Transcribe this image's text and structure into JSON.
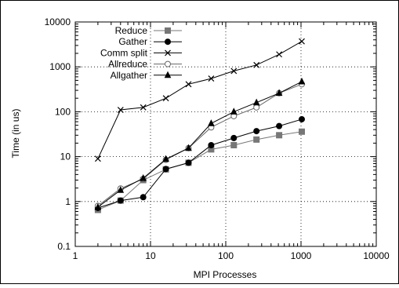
{
  "chart_data": {
    "type": "line",
    "xlabel": "MPI Processes",
    "ylabel": "Time (in us)",
    "xscale": "log",
    "yscale": "log",
    "xlim": [
      1,
      10000
    ],
    "ylim": [
      0.1,
      10000
    ],
    "x_ticks": [
      1,
      10,
      100,
      1000,
      10000
    ],
    "y_ticks": [
      0.1,
      1,
      10,
      100,
      1000,
      10000
    ],
    "x_tick_labels": [
      "1",
      "10",
      "100",
      "1000",
      "10000"
    ],
    "y_tick_labels": [
      "0.1",
      "1",
      "10",
      "100",
      "1000",
      "10000"
    ],
    "grid": true,
    "legend_position": "top-left",
    "series": [
      {
        "name": "Reduce",
        "marker": "filled-square",
        "color": "#777777",
        "x": [
          2,
          4,
          8,
          16,
          32,
          64,
          128,
          256,
          512,
          1024
        ],
        "y": [
          0.65,
          1.05,
          3.0,
          5.2,
          7.3,
          14.5,
          18.0,
          24.0,
          30.0,
          36.0
        ]
      },
      {
        "name": "Gather",
        "marker": "filled-circle",
        "color": "#000000",
        "x": [
          2,
          4,
          8,
          16,
          32,
          64,
          128,
          256,
          512,
          1024
        ],
        "y": [
          0.72,
          1.05,
          1.25,
          5.3,
          7.3,
          18.0,
          26.0,
          37.0,
          48.0,
          68.0
        ]
      },
      {
        "name": "Comm split",
        "marker": "cross",
        "color": "#000000",
        "x": [
          2,
          4,
          8,
          16,
          32,
          64,
          128,
          256,
          512,
          1024
        ],
        "y": [
          9.0,
          110.0,
          125.0,
          200.0,
          410.0,
          550.0,
          810.0,
          1100.0,
          1900.0,
          3700.0
        ]
      },
      {
        "name": "Allreduce",
        "marker": "open-circle",
        "color": "#666666",
        "x": [
          2,
          4,
          8,
          16,
          32,
          64,
          128,
          256,
          512,
          1024
        ],
        "y": [
          0.8,
          1.95,
          3.2,
          8.5,
          15.5,
          45.0,
          80.0,
          125.0,
          260.0,
          410.0
        ]
      },
      {
        "name": "Allgather",
        "marker": "filled-triangle",
        "color": "#000000",
        "x": [
          2,
          4,
          8,
          16,
          32,
          64,
          128,
          256,
          512,
          1024
        ],
        "y": [
          0.75,
          1.8,
          3.3,
          8.8,
          15.5,
          55.0,
          100.0,
          160.0,
          260.0,
          470.0
        ]
      }
    ]
  }
}
